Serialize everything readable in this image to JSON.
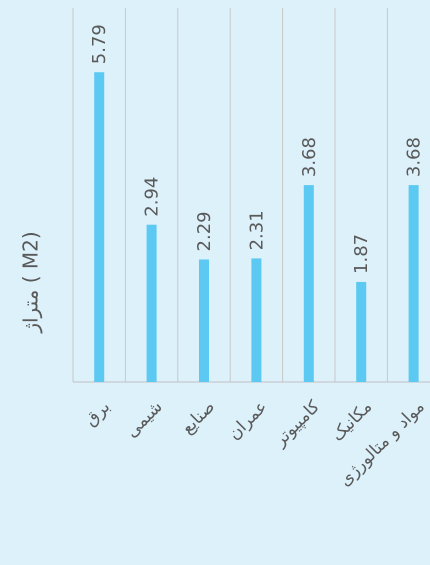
{
  "chart_data": {
    "type": "bar",
    "y_label": "متراژ ( M2)",
    "categories": [
      "برق",
      "شیمی",
      "صنایع",
      "عمران",
      "کامپیوتر",
      "مکانیک",
      "مواد و متالورژی"
    ],
    "values": [
      5.79,
      2.94,
      2.29,
      2.31,
      3.68,
      1.87,
      3.68
    ],
    "color": "#5bc9f1",
    "ylim": [
      0,
      7.14
    ]
  }
}
